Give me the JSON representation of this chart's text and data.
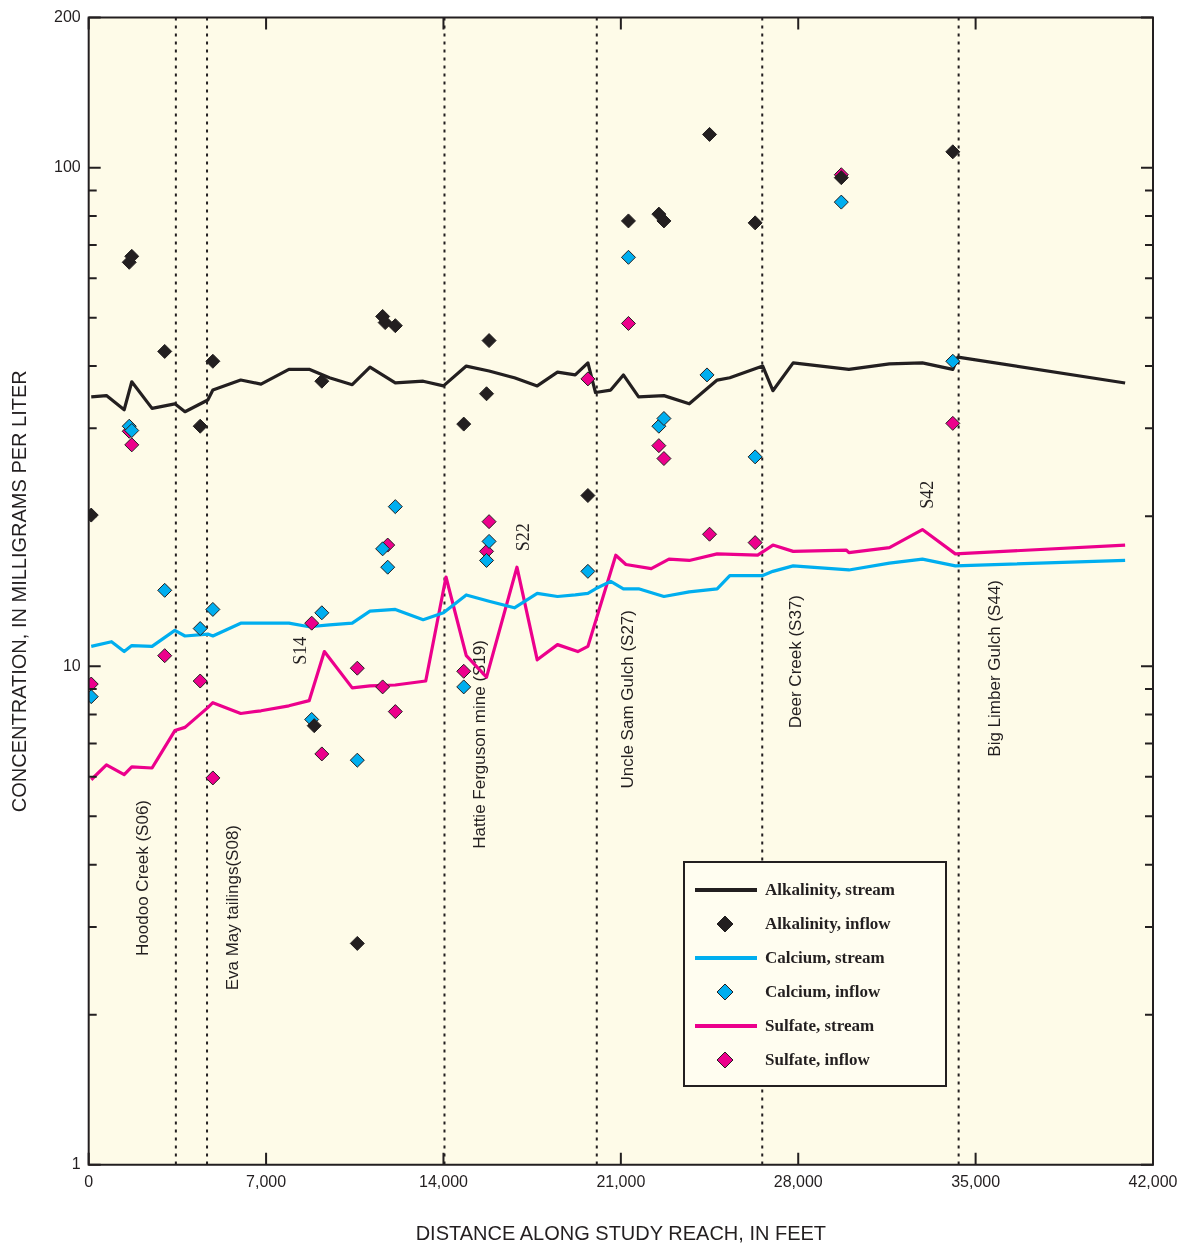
{
  "chart_data": {
    "type": "line",
    "xlabel": "DISTANCE ALONG STUDY REACH, IN FEET",
    "ylabel": "CONCENTRATION, IN MILLIGRAMS PER LITER",
    "xlim": [
      0,
      42000
    ],
    "xticks": [
      0,
      {
        "value": 7000,
        "label": "7,000"
      },
      {
        "value": 14000,
        "label": "14,000"
      },
      {
        "value": 21000,
        "label": "21,000"
      },
      {
        "value": 28000,
        "label": "28,000"
      },
      {
        "value": 35000,
        "label": "35,000"
      },
      {
        "value": 42000,
        "label": "42,000"
      }
    ],
    "ylim": [
      1,
      200
    ],
    "log": true,
    "yticks": [
      1,
      {
        "value": 2,
        "label": null
      },
      {
        "value": 3,
        "label": null
      },
      {
        "value": 4,
        "label": null
      },
      {
        "value": 5,
        "label": null
      },
      {
        "value": 6,
        "label": null
      },
      {
        "value": 7,
        "label": null
      },
      {
        "value": 8,
        "label": null
      },
      {
        "value": 9,
        "label": null
      },
      10,
      {
        "value": 20,
        "label": null
      },
      {
        "value": 30,
        "label": null
      },
      {
        "value": 40,
        "label": null
      },
      {
        "value": 50,
        "label": null
      },
      {
        "value": 60,
        "label": null
      },
      {
        "value": 70,
        "label": null
      },
      {
        "value": 80,
        "label": null
      },
      {
        "value": 90,
        "label": null
      },
      100,
      200
    ],
    "grid": false,
    "legend": "bottom right",
    "series": [
      {
        "name": "Alkalinity, stream",
        "type": "line",
        "color": "#231f20",
        "x": [
          100,
          700,
          1400,
          1700,
          2500,
          3400,
          3800,
          4700,
          4900,
          6000,
          6800,
          7900,
          8700,
          9500,
          10400,
          11100,
          12100,
          13200,
          14000,
          14900,
          15800,
          16800,
          17700,
          18500,
          19200,
          19700,
          20000,
          20600,
          21100,
          21700,
          22700,
          23700,
          24800,
          25300,
          26600,
          27000,
          27800,
          30000,
          31600,
          32900,
          34100,
          34300,
          40900
        ],
        "values": [
          34.7,
          34.9,
          32.7,
          37.2,
          32.9,
          33.6,
          32.4,
          34.2,
          35.8,
          37.5,
          36.8,
          39.4,
          39.4,
          37.9,
          36.7,
          39.8,
          37.0,
          37.3,
          36.5,
          40.0,
          39.1,
          37.9,
          36.5,
          38.9,
          38.4,
          40.6,
          35.4,
          35.8,
          38.4,
          34.7,
          34.9,
          33.6,
          37.5,
          37.9,
          40.0,
          35.7,
          40.6,
          39.4,
          40.4,
          40.6,
          39.4,
          41.7,
          37.0
        ]
      },
      {
        "name": "Alkalinity, inflow",
        "type": "scatter",
        "marker": "diamond",
        "color": "#231f20",
        "x": [
          100,
          1600,
          1700,
          3000,
          4400,
          4900,
          8900,
          9200,
          10600,
          11600,
          11700,
          12100,
          14800,
          15700,
          15800,
          19700,
          21300,
          22500,
          22700,
          24500,
          26300,
          29700,
          34100
        ],
        "values": [
          20.1,
          64.6,
          66.4,
          42.8,
          30.3,
          40.9,
          7.6,
          37.3,
          2.78,
          50.3,
          48.9,
          48.2,
          30.6,
          35.2,
          45.0,
          22.0,
          78.2,
          80.7,
          78.2,
          116.6,
          77.5,
          95.5,
          107.6
        ]
      },
      {
        "name": "Calcium, stream",
        "type": "line",
        "color": "#00aeef",
        "x": [
          100,
          900,
          1400,
          1700,
          2500,
          3400,
          3800,
          4700,
          4900,
          6000,
          6800,
          7900,
          8700,
          9500,
          10400,
          11100,
          12100,
          13200,
          14000,
          14900,
          15800,
          16800,
          17700,
          18500,
          19200,
          19700,
          20000,
          20600,
          21100,
          21700,
          22700,
          23700,
          24800,
          25300,
          26600,
          27000,
          27800,
          30000,
          31600,
          32900,
          34200,
          40900
        ],
        "values": [
          10.96,
          11.2,
          10.7,
          11.0,
          10.96,
          11.8,
          11.5,
          11.6,
          11.5,
          12.2,
          12.2,
          12.2,
          12.0,
          12.1,
          12.2,
          12.9,
          13.0,
          12.4,
          12.8,
          13.9,
          13.5,
          13.1,
          14.0,
          13.8,
          13.9,
          14.0,
          14.3,
          14.8,
          14.3,
          14.3,
          13.8,
          14.1,
          14.3,
          15.2,
          15.2,
          15.5,
          15.9,
          15.6,
          16.1,
          16.4,
          15.9,
          16.3
        ]
      },
      {
        "name": "Calcium, inflow",
        "type": "scatter",
        "marker": "diamond",
        "color": "#00aeef",
        "x": [
          100,
          1600,
          1700,
          3000,
          4400,
          4900,
          8800,
          9200,
          10600,
          11600,
          11800,
          12100,
          14800,
          15700,
          15800,
          19700,
          21300,
          22500,
          22700,
          24400,
          26300,
          29700,
          34100
        ],
        "values": [
          8.69,
          30.3,
          29.7,
          14.2,
          11.9,
          13.0,
          7.82,
          12.8,
          6.48,
          17.2,
          15.8,
          20.9,
          9.09,
          16.3,
          17.8,
          15.5,
          66.1,
          30.3,
          31.4,
          38.4,
          26.3,
          85.3,
          40.9
        ]
      },
      {
        "name": "Sulfate, stream",
        "type": "line",
        "color": "#ec008c",
        "x": [
          100,
          700,
          1400,
          1700,
          2500,
          3400,
          3800,
          4700,
          4900,
          6000,
          6800,
          7900,
          8700,
          9300,
          10400,
          11100,
          12100,
          13300,
          14100,
          14900,
          15700,
          16900,
          17700,
          18500,
          19300,
          19700,
          20800,
          21200,
          22200,
          22900,
          23700,
          24800,
          26400,
          27000,
          27800,
          29900,
          30000,
          31600,
          32900,
          34200,
          40900
        ],
        "values": [
          5.92,
          6.34,
          6.06,
          6.28,
          6.25,
          7.43,
          7.54,
          8.26,
          8.45,
          8.04,
          8.14,
          8.33,
          8.53,
          10.7,
          9.05,
          9.13,
          9.17,
          9.34,
          15.1,
          10.5,
          9.51,
          15.8,
          10.3,
          11.05,
          10.7,
          10.96,
          16.7,
          16.0,
          15.7,
          16.4,
          16.3,
          16.8,
          16.7,
          17.5,
          17.0,
          17.1,
          16.9,
          17.3,
          18.8,
          16.8,
          17.5
        ]
      },
      {
        "name": "Sulfate, inflow",
        "type": "scatter",
        "marker": "diamond",
        "color": "#ec008c",
        "x": [
          100,
          1600,
          1700,
          3000,
          4400,
          4900,
          8800,
          9200,
          10600,
          11600,
          11800,
          12100,
          14800,
          15700,
          15800,
          19700,
          21300,
          22500,
          22700,
          24500,
          26300,
          29700,
          34100
        ],
        "values": [
          9.21,
          29.6,
          27.8,
          10.5,
          9.34,
          5.97,
          12.2,
          6.67,
          9.91,
          9.09,
          17.5,
          8.11,
          9.77,
          17.0,
          19.5,
          37.7,
          48.7,
          27.7,
          26.1,
          18.4,
          17.7,
          96.8,
          30.7
        ]
      }
    ],
    "ref_lines": [
      {
        "axis": "x",
        "value": 3440,
        "label": "Hoodoo Creek (S06)",
        "color": "#231f20",
        "line_style": "dotted"
      },
      {
        "axis": "x",
        "value": 4670,
        "label": "Eva May tailings(S08)",
        "color": "#231f20",
        "line_style": "dotted"
      },
      {
        "axis": "x",
        "value": 14040,
        "label": "Hattie Ferguson mine (S19)",
        "color": "#231f20",
        "line_style": "dotted"
      },
      {
        "axis": "x",
        "value": 20050,
        "label": "Uncle Sam Gulch (S27)",
        "color": "#231f20",
        "line_style": "dotted"
      },
      {
        "axis": "x",
        "value": 26580,
        "label": "Deer Creek (S37)",
        "color": "#231f20",
        "line_style": "dotted"
      },
      {
        "axis": "x",
        "value": 34330,
        "label": "Big Limber Gulch (S44)",
        "color": "#231f20",
        "line_style": "dotted"
      }
    ],
    "annotations": [
      "S14",
      "S22",
      "S42"
    ]
  }
}
